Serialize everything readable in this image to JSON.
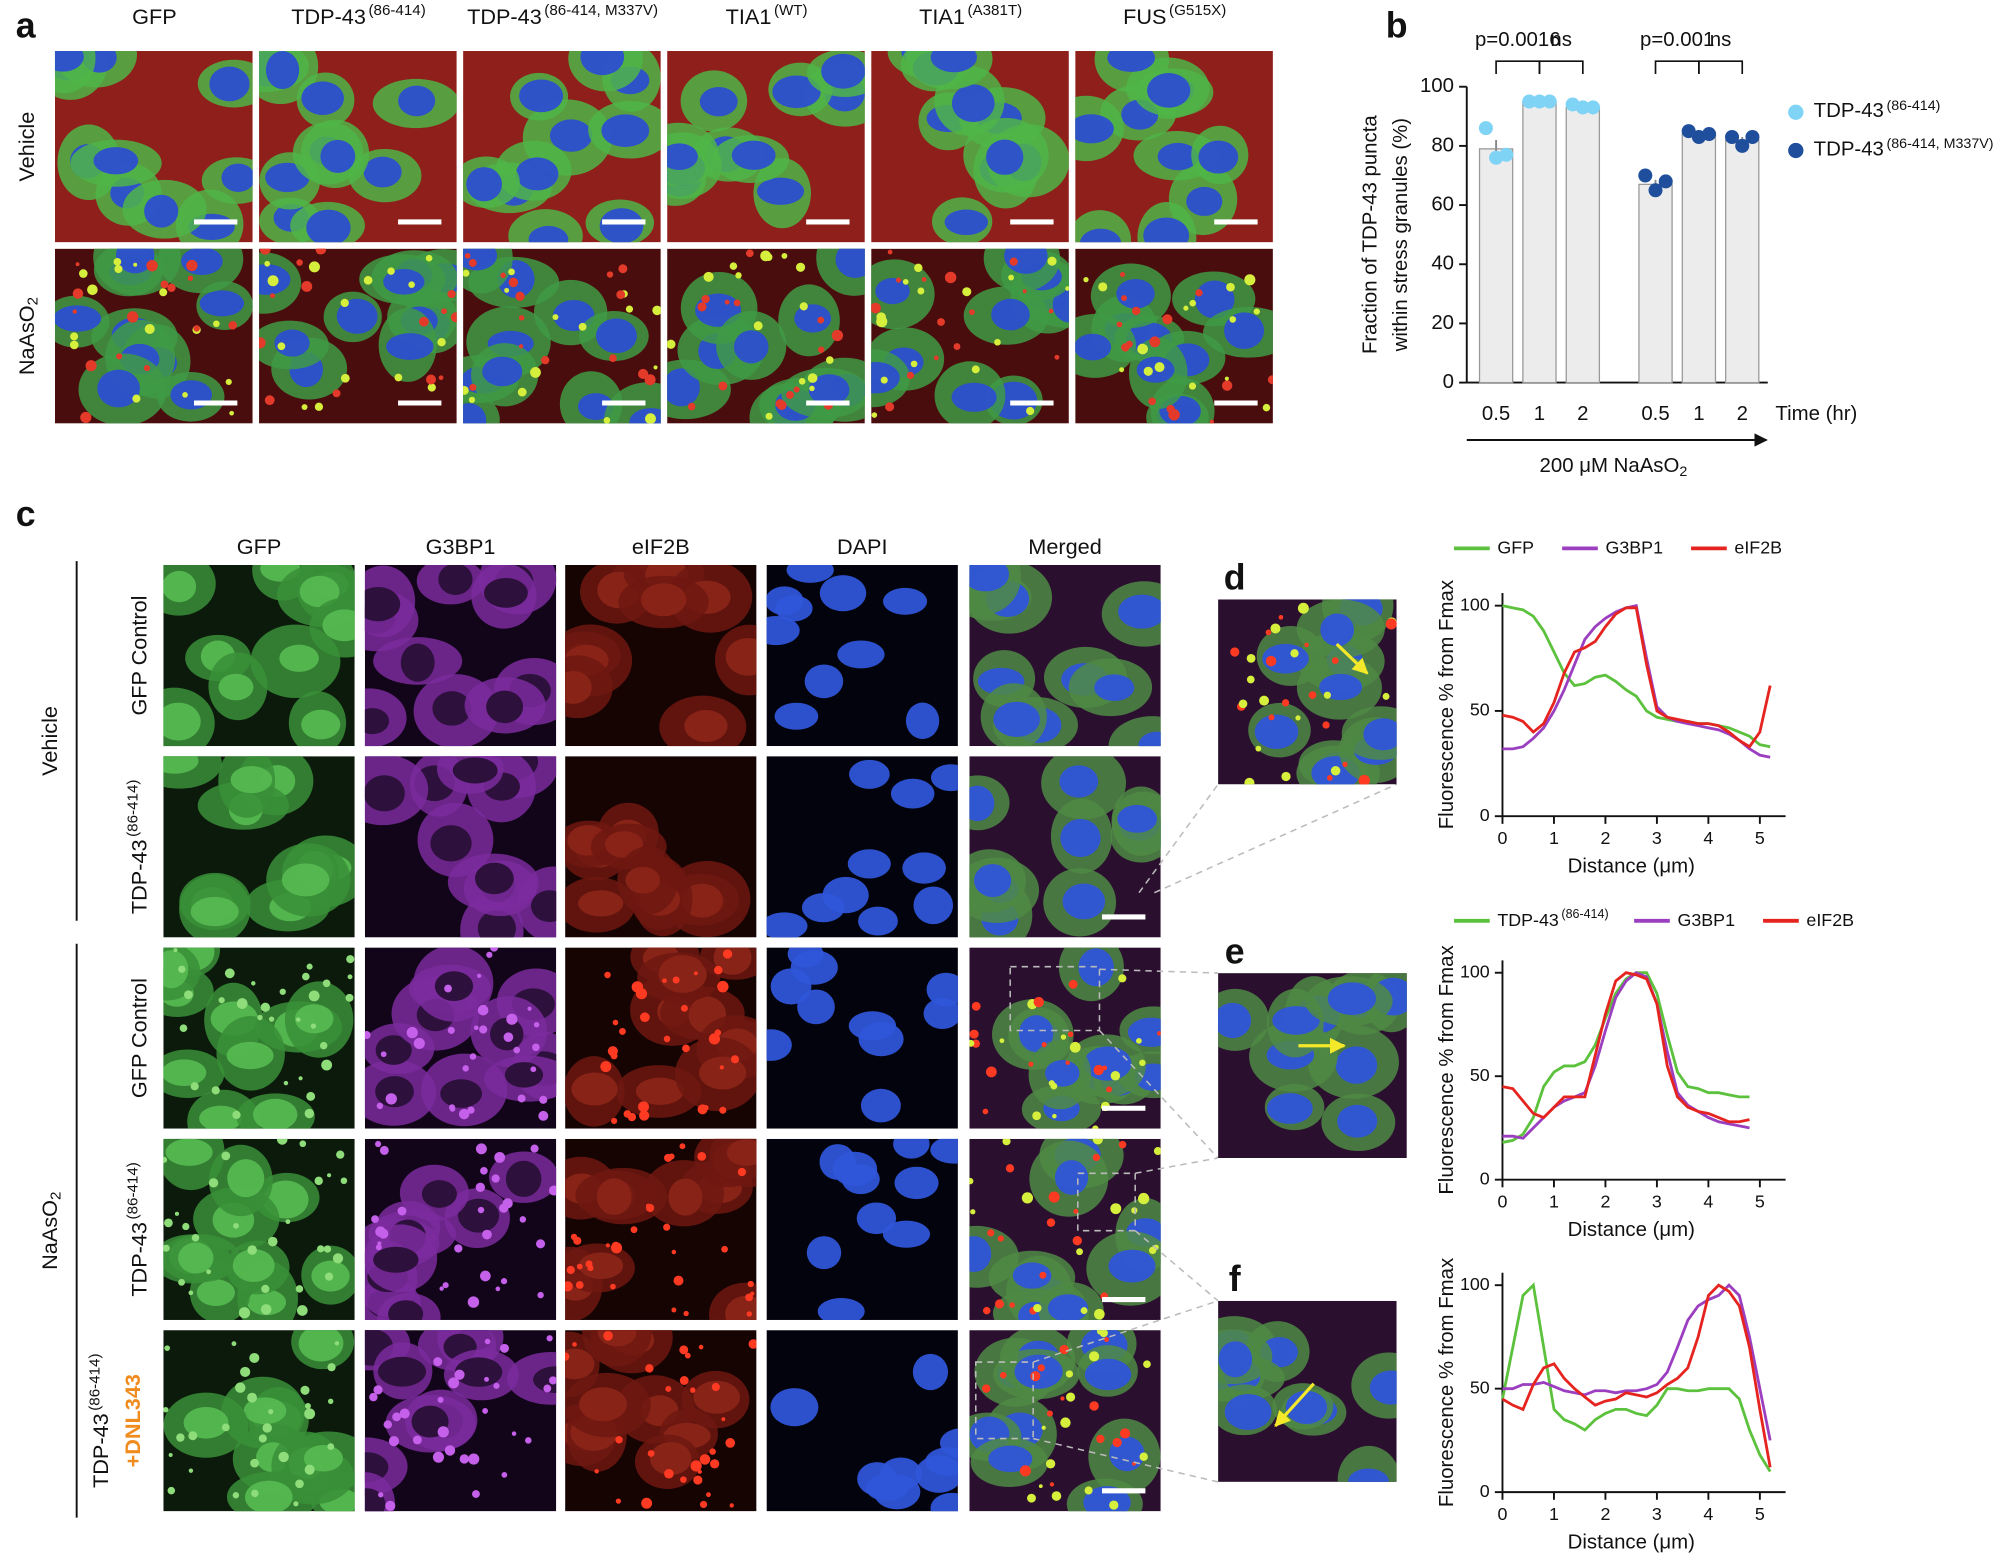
{
  "figure": {
    "panel_labels": [
      "a",
      "b",
      "c",
      "d",
      "e",
      "f"
    ],
    "a": {
      "columns": [
        {
          "text": "GFP"
        },
        {
          "text": "TDP-43",
          "sup": "(86-414)"
        },
        {
          "text": "TDP-43",
          "sup": "(86-414, M337V)"
        },
        {
          "text": "TIA1",
          "sup": "(WT)"
        },
        {
          "text": "TIA1",
          "sup": "(A381T)"
        },
        {
          "text": "FUS",
          "sup": "(G515X)"
        }
      ],
      "rows": [
        {
          "text": "Vehicle"
        },
        {
          "text": "NaAsO",
          "sub": "2"
        }
      ]
    },
    "c": {
      "columns": [
        "GFP",
        "G3BP1",
        "eIF2B",
        "DAPI",
        "Merged"
      ],
      "rows": [
        {
          "text": "GFP Control"
        },
        {
          "text": "TDP-43",
          "sup": "(86-414)"
        },
        {
          "text": "GFP Control"
        },
        {
          "text": "TDP-43",
          "sup": "(86-414)"
        },
        {
          "text": "TDP-43",
          "sup": "(86-414)",
          "extra": "+DNL343"
        }
      ],
      "groups": [
        {
          "text": "Vehicle"
        },
        {
          "text": "NaAsO",
          "sub": "2"
        }
      ]
    }
  },
  "chart_data": [
    {
      "type": "bar",
      "ylabel": [
        "Fraction of TDP-43 puncta",
        "within stress granules (%)"
      ],
      "categories": [
        "0.5",
        "1",
        "2",
        "0.5",
        "1",
        "2"
      ],
      "values": [
        79,
        95,
        93,
        67,
        84,
        82
      ],
      "errors": [
        3,
        0.5,
        0.5,
        1.5,
        1,
        1
      ],
      "color": "#ececec",
      "ylim": [
        0,
        100
      ],
      "yticks": [
        0,
        20,
        40,
        60,
        80,
        100
      ],
      "xlabel": "Time (hr)",
      "treatment": {
        "text": "200 μM NaAsO",
        "sub": "2"
      },
      "annotations": [
        {
          "text": "p=0.0016",
          "from": 0,
          "to": 1
        },
        {
          "text": "ns",
          "from": 1,
          "to": 2
        },
        {
          "text": "p=0.001",
          "from": 3,
          "to": 4
        },
        {
          "text": "ns",
          "from": 4,
          "to": 5
        }
      ],
      "series": [
        {
          "name": "TDP-43",
          "name_sup": "(86-414)",
          "color": "#7fd3f5",
          "points": [
            [
              86,
              76,
              77
            ],
            [
              95,
              95,
              95
            ],
            [
              94,
              93,
              93
            ],
            null,
            null,
            null
          ]
        },
        {
          "name": "TDP-43",
          "name_sup": "(86-414, M337V)",
          "color": "#1f4e9c",
          "points": [
            null,
            null,
            null,
            [
              70,
              65,
              68
            ],
            [
              85,
              83,
              84
            ],
            [
              83,
              80,
              83
            ]
          ]
        }
      ]
    },
    {
      "type": "line",
      "x": [
        0,
        0.2,
        0.4,
        0.6,
        0.8,
        1,
        1.2,
        1.4,
        1.6,
        1.8,
        2,
        2.2,
        2.4,
        2.6,
        2.8,
        3,
        3.2,
        3.4,
        3.6,
        3.8,
        4,
        4.2,
        4.4,
        4.6,
        4.8,
        5,
        5.2
      ],
      "xlim": [
        0,
        5.5
      ],
      "xticks": [
        0,
        1,
        2,
        3,
        4,
        5
      ],
      "ylim": [
        0,
        106
      ],
      "yticks": [
        0,
        50,
        100
      ],
      "xlabel": "Distance (μm)",
      "ylabel": "Fluorescence % from Fmax",
      "series": [
        {
          "name": "GFP",
          "color": "#5cc13c",
          "values": [
            100,
            99,
            98,
            95,
            88,
            78,
            68,
            62,
            63,
            66,
            67,
            64,
            60,
            57,
            50,
            47,
            46,
            45,
            45,
            44,
            44,
            43,
            42,
            40,
            38,
            34,
            33
          ]
        },
        {
          "name": "G3BP1",
          "color": "#9b3fc0",
          "values": [
            32,
            32,
            33,
            37,
            42,
            50,
            60,
            72,
            84,
            90,
            94,
            97,
            99,
            100,
            75,
            52,
            47,
            45,
            44,
            43,
            42,
            41,
            39,
            36,
            32,
            29,
            28
          ]
        },
        {
          "name": "eIF2B",
          "color": "#e52420",
          "values": [
            48,
            47,
            45,
            40,
            44,
            54,
            68,
            78,
            80,
            83,
            90,
            96,
            99,
            99,
            72,
            50,
            47,
            46,
            45,
            44,
            44,
            43,
            40,
            36,
            33,
            40,
            62
          ]
        }
      ]
    },
    {
      "type": "line",
      "x": [
        0,
        0.2,
        0.4,
        0.6,
        0.8,
        1,
        1.2,
        1.4,
        1.6,
        1.8,
        2,
        2.2,
        2.4,
        2.6,
        2.8,
        3,
        3.2,
        3.4,
        3.6,
        3.8,
        4,
        4.2,
        4.4,
        4.6,
        4.8
      ],
      "xlim": [
        0,
        5.5
      ],
      "xticks": [
        0,
        1,
        2,
        3,
        4,
        5
      ],
      "ylim": [
        0,
        106
      ],
      "yticks": [
        0,
        50,
        100
      ],
      "xlabel": "Distance (μm)",
      "ylabel": "Fluorescence % from Fmax",
      "series": [
        {
          "name": "TDP-43",
          "name_sup": "(86-414)",
          "color": "#5cc13c",
          "values": [
            18,
            19,
            22,
            30,
            45,
            52,
            55,
            55,
            57,
            65,
            78,
            90,
            97,
            100,
            100,
            90,
            70,
            52,
            45,
            44,
            42,
            42,
            41,
            40,
            40
          ]
        },
        {
          "name": "G3BP1",
          "color": "#9b3fc0",
          "values": [
            21,
            21,
            20,
            25,
            30,
            35,
            38,
            40,
            42,
            55,
            72,
            88,
            96,
            100,
            98,
            85,
            62,
            42,
            36,
            33,
            30,
            28,
            27,
            26,
            25
          ]
        },
        {
          "name": "eIF2B",
          "color": "#e52420",
          "values": [
            45,
            44,
            38,
            32,
            30,
            35,
            40,
            40,
            40,
            60,
            80,
            96,
            100,
            99,
            97,
            85,
            55,
            40,
            35,
            33,
            32,
            30,
            28,
            28,
            29
          ]
        }
      ]
    },
    {
      "type": "line",
      "x": [
        0,
        0.2,
        0.4,
        0.6,
        0.8,
        1,
        1.2,
        1.4,
        1.6,
        1.8,
        2,
        2.2,
        2.4,
        2.6,
        2.8,
        3,
        3.2,
        3.4,
        3.6,
        3.8,
        4,
        4.2,
        4.4,
        4.6,
        4.8,
        5,
        5.2
      ],
      "xlim": [
        0,
        5.5
      ],
      "xticks": [
        0,
        1,
        2,
        3,
        4,
        5
      ],
      "ylim": [
        0,
        106
      ],
      "yticks": [
        0,
        50,
        100
      ],
      "xlabel": "Distance (μm)",
      "ylabel": "Fluorescence % from Fmax",
      "series": [
        {
          "color": "#5cc13c",
          "values": [
            45,
            70,
            95,
            100,
            70,
            40,
            35,
            33,
            30,
            35,
            38,
            40,
            40,
            38,
            37,
            42,
            50,
            50,
            49,
            49,
            50,
            50,
            50,
            45,
            30,
            18,
            10
          ]
        },
        {
          "color": "#9b3fc0",
          "values": [
            50,
            50,
            52,
            52,
            53,
            51,
            49,
            48,
            47,
            49,
            49,
            48,
            49,
            49,
            50,
            52,
            58,
            70,
            83,
            90,
            93,
            95,
            100,
            95,
            75,
            50,
            25
          ]
        },
        {
          "color": "#e52420",
          "values": [
            45,
            42,
            40,
            52,
            60,
            62,
            55,
            50,
            46,
            42,
            44,
            45,
            48,
            47,
            46,
            48,
            52,
            55,
            60,
            75,
            95,
            100,
            97,
            90,
            70,
            40,
            12
          ]
        }
      ]
    }
  ]
}
